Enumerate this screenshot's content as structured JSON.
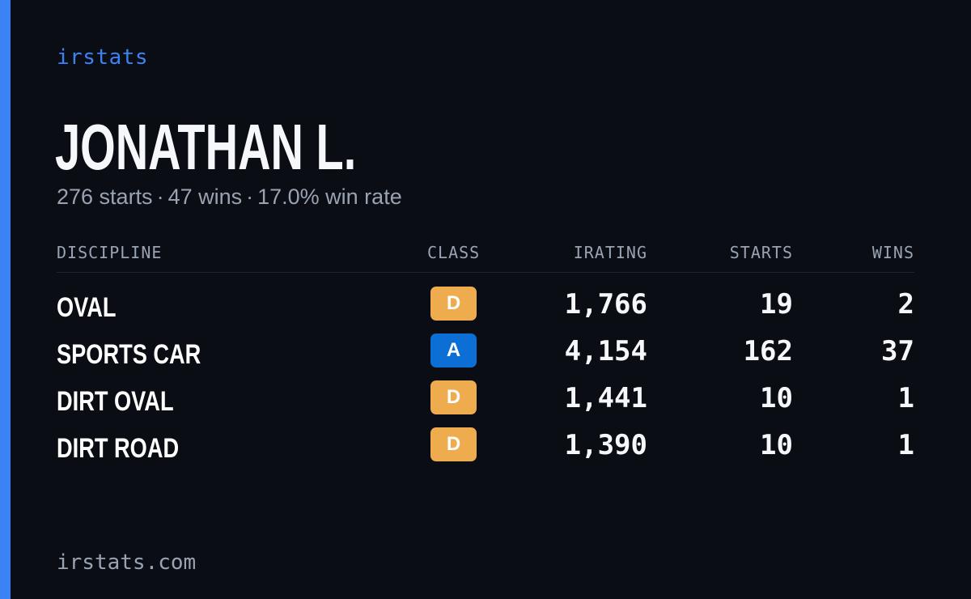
{
  "brand": "irstats",
  "colors": {
    "background": "#0a0d14",
    "accent": "#3b82f6",
    "muted": "#9aa3b2",
    "class_a": "#0b6fd6",
    "class_d": "#eeac4f"
  },
  "player": {
    "name": "JONATHAN L.",
    "starts_text": "276 starts",
    "wins_text": "47 wins",
    "win_rate_text": "17.0% win rate",
    "separator": "·"
  },
  "table": {
    "headers": {
      "discipline": "DISCIPLINE",
      "class": "CLASS",
      "irating": "IRATING",
      "starts": "STARTS",
      "wins": "WINS"
    },
    "rows": [
      {
        "discipline": "OVAL",
        "class": "D",
        "irating": "1,766",
        "starts": "19",
        "wins": "2"
      },
      {
        "discipline": "SPORTS CAR",
        "class": "A",
        "irating": "4,154",
        "starts": "162",
        "wins": "37"
      },
      {
        "discipline": "DIRT OVAL",
        "class": "D",
        "irating": "1,441",
        "starts": "10",
        "wins": "1"
      },
      {
        "discipline": "DIRT ROAD",
        "class": "D",
        "irating": "1,390",
        "starts": "10",
        "wins": "1"
      }
    ]
  },
  "footer": "irstats.com"
}
